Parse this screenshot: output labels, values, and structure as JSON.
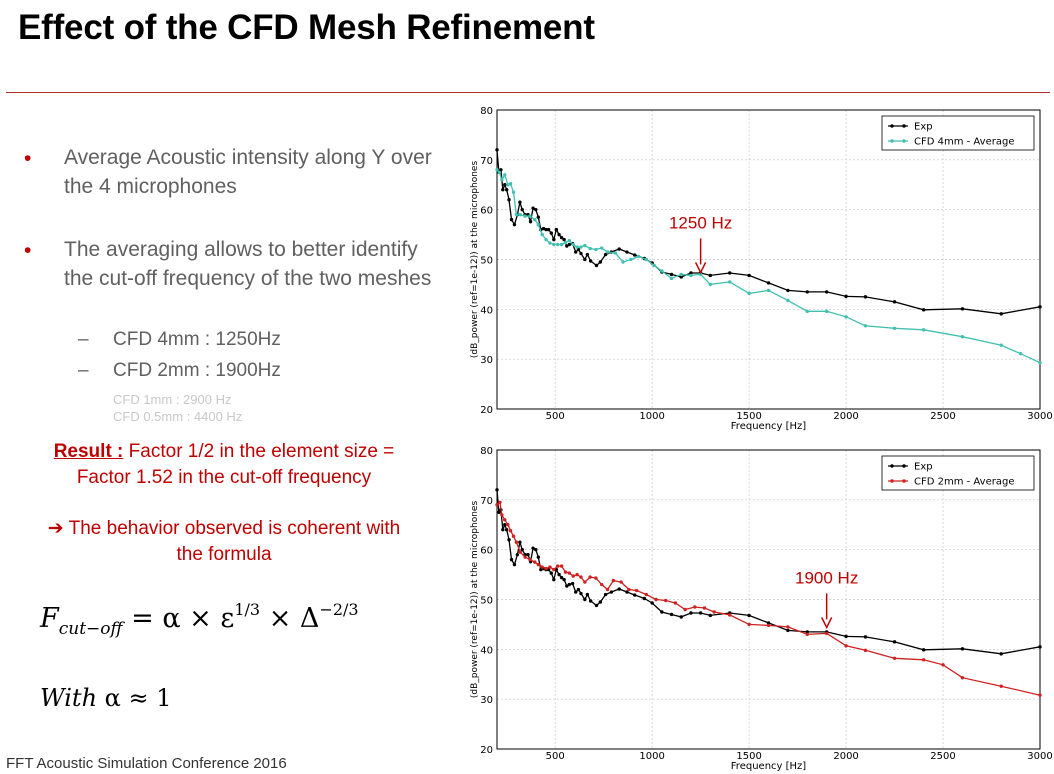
{
  "slide": {
    "title": "Effect of the CFD Mesh Refinement",
    "footer": "FFT Acoustic Simulation Conference 2016"
  },
  "bullets": [
    {
      "marker": "•",
      "text": "Average Acoustic intensity along Y over the 4 microphones"
    },
    {
      "marker": "•",
      "text": "The averaging allows to better identify the cut-off frequency of the two meshes"
    }
  ],
  "sub_bullets": [
    {
      "marker": "–",
      "text": "CFD 4mm : 1250Hz"
    },
    {
      "marker": "–",
      "text": "CFD 2mm : 1900Hz"
    }
  ],
  "fine_notes": [
    "CFD 1mm : 2900 Hz",
    "CFD 0.5mm : 4400 Hz"
  ],
  "result": {
    "label": "Result :",
    "line1": " Factor 1/2 in the element size =",
    "line2": "Factor 1.52 in the cut-off frequency"
  },
  "coherent": {
    "arrow": "➔",
    "line1": " The behavior observed is coherent with",
    "line2": "the formula"
  },
  "formula": {
    "lhs": "F",
    "lhs_sub": "cut−off",
    "rhs_part1": " = α × ε",
    "exp1": "1/3",
    "rhs_part2": " × Δ",
    "exp2": "−2/3"
  },
  "with_alpha": {
    "word": "With",
    "rest": " α ≈ 1"
  },
  "chart_data": [
    {
      "type": "line",
      "xlabel": "Frequency [Hz]",
      "ylabel": "(dB_power (ref=1e-12)) at the microphones",
      "xlim": [
        200,
        3000
      ],
      "ylim": [
        20,
        80
      ],
      "xticks": [
        500,
        1000,
        1500,
        2000,
        2500,
        3000
      ],
      "yticks": [
        20,
        30,
        40,
        50,
        60,
        70,
        80
      ],
      "grid": true,
      "legend_position": "top-right",
      "annotation": {
        "text": "1250 Hz",
        "x": 1250,
        "y": 47
      },
      "series": [
        {
          "name": "Exp",
          "color": "#000000",
          "points": [
            [
              200,
              72
            ],
            [
              210,
              67.5
            ],
            [
              220,
              68
            ],
            [
              230,
              64
            ],
            [
              240,
              65
            ],
            [
              250,
              64
            ],
            [
              262,
              62
            ],
            [
              275,
              58
            ],
            [
              290,
              57
            ],
            [
              305,
              59
            ],
            [
              318,
              61.5
            ],
            [
              330,
              60
            ],
            [
              345,
              59
            ],
            [
              360,
              59
            ],
            [
              373,
              57.6
            ],
            [
              386,
              60.3
            ],
            [
              400,
              60
            ],
            [
              413,
              58.5
            ],
            [
              426,
              56
            ],
            [
              440,
              56.2
            ],
            [
              453,
              56
            ],
            [
              466,
              56
            ],
            [
              480,
              55.3
            ],
            [
              493,
              54
            ],
            [
              506,
              56
            ],
            [
              520,
              55
            ],
            [
              533,
              54.4
            ],
            [
              546,
              54
            ],
            [
              560,
              52.7
            ],
            [
              573,
              53
            ],
            [
              590,
              53.2
            ],
            [
              606,
              51.5
            ],
            [
              620,
              52
            ],
            [
              633,
              51.2
            ],
            [
              653,
              50
            ],
            [
              666,
              51
            ],
            [
              683,
              49.7
            ],
            [
              713,
              48.8
            ],
            [
              733,
              49.5
            ],
            [
              760,
              51
            ],
            [
              790,
              51.5
            ],
            [
              830,
              52.1
            ],
            [
              870,
              51.5
            ],
            [
              910,
              50.9
            ],
            [
              960,
              50.2
            ],
            [
              1000,
              49.3
            ],
            [
              1050,
              47.5
            ],
            [
              1100,
              47
            ],
            [
              1150,
              46.5
            ],
            [
              1200,
              47.3
            ],
            [
              1250,
              47.3
            ],
            [
              1300,
              46.8
            ],
            [
              1400,
              47.3
            ],
            [
              1500,
              46.8
            ],
            [
              1600,
              45.3
            ],
            [
              1700,
              43.8
            ],
            [
              1800,
              43.5
            ],
            [
              1900,
              43.5
            ],
            [
              2000,
              42.6
            ],
            [
              2100,
              42.5
            ],
            [
              2250,
              41.5
            ],
            [
              2400,
              39.9
            ],
            [
              2600,
              40.1
            ],
            [
              2800,
              39.1
            ],
            [
              3000,
              40.5
            ]
          ]
        },
        {
          "name": "CFD 4mm - Average",
          "color": "#40c0b0",
          "points": [
            [
              200,
              68
            ],
            [
              212,
              67.5
            ],
            [
              225,
              66
            ],
            [
              240,
              67
            ],
            [
              256,
              65
            ],
            [
              270,
              65.2
            ],
            [
              285,
              63.5
            ],
            [
              300,
              59
            ],
            [
              320,
              59
            ],
            [
              345,
              58.7
            ],
            [
              370,
              58.7
            ],
            [
              395,
              58
            ],
            [
              413,
              57
            ],
            [
              433,
              55
            ],
            [
              453,
              54
            ],
            [
              473,
              53.3
            ],
            [
              493,
              53
            ],
            [
              513,
              53
            ],
            [
              533,
              53
            ],
            [
              553,
              53.4
            ],
            [
              573,
              53.8
            ],
            [
              593,
              53
            ],
            [
              613,
              52.5
            ],
            [
              633,
              52.5
            ],
            [
              653,
              52.8
            ],
            [
              680,
              52.2
            ],
            [
              710,
              52
            ],
            [
              740,
              52.3
            ],
            [
              770,
              51.5
            ],
            [
              810,
              51.3
            ],
            [
              850,
              49.5
            ],
            [
              890,
              50
            ],
            [
              930,
              50.6
            ],
            [
              970,
              50
            ],
            [
              1010,
              48.8
            ],
            [
              1050,
              47.7
            ],
            [
              1100,
              46.2
            ],
            [
              1150,
              47
            ],
            [
              1200,
              46.8
            ],
            [
              1250,
              47
            ],
            [
              1300,
              45
            ],
            [
              1400,
              45.5
            ],
            [
              1500,
              43.2
            ],
            [
              1600,
              43.8
            ],
            [
              1700,
              41.8
            ],
            [
              1800,
              39.6
            ],
            [
              1900,
              39.6
            ],
            [
              2000,
              38.5
            ],
            [
              2100,
              36.7
            ],
            [
              2250,
              36.2
            ],
            [
              2400,
              35.9
            ],
            [
              2600,
              34.5
            ],
            [
              2800,
              32.8
            ],
            [
              2900,
              31.1
            ],
            [
              3000,
              29.3
            ]
          ]
        }
      ]
    },
    {
      "type": "line",
      "xlabel": "Frequency [Hz]",
      "ylabel": "(dB_power (ref=1e-12)) at the microphones",
      "xlim": [
        200,
        3000
      ],
      "ylim": [
        20,
        80
      ],
      "xticks": [
        500,
        1000,
        1500,
        2000,
        2500,
        3000
      ],
      "yticks": [
        20,
        30,
        40,
        50,
        60,
        70,
        80
      ],
      "grid": true,
      "legend_position": "top-right",
      "annotation": {
        "text": "1900 Hz",
        "x": 1900,
        "y": 44
      },
      "series": [
        {
          "name": "Exp",
          "color": "#000000",
          "points": [
            [
              200,
              72
            ],
            [
              210,
              67.5
            ],
            [
              220,
              68
            ],
            [
              230,
              64
            ],
            [
              240,
              65
            ],
            [
              250,
              64
            ],
            [
              262,
              62
            ],
            [
              275,
              58
            ],
            [
              290,
              57
            ],
            [
              305,
              59
            ],
            [
              318,
              61.5
            ],
            [
              330,
              60
            ],
            [
              345,
              59
            ],
            [
              360,
              59
            ],
            [
              373,
              57.6
            ],
            [
              386,
              60.3
            ],
            [
              400,
              60
            ],
            [
              413,
              58.5
            ],
            [
              426,
              56
            ],
            [
              440,
              56.2
            ],
            [
              453,
              56
            ],
            [
              466,
              56
            ],
            [
              480,
              55.3
            ],
            [
              493,
              54
            ],
            [
              506,
              56
            ],
            [
              520,
              55
            ],
            [
              533,
              54.4
            ],
            [
              546,
              54
            ],
            [
              560,
              52.7
            ],
            [
              573,
              53
            ],
            [
              590,
              53.2
            ],
            [
              606,
              51.5
            ],
            [
              620,
              52
            ],
            [
              633,
              51.2
            ],
            [
              653,
              50
            ],
            [
              666,
              51
            ],
            [
              683,
              49.7
            ],
            [
              713,
              48.8
            ],
            [
              733,
              49.5
            ],
            [
              760,
              51
            ],
            [
              790,
              51.5
            ],
            [
              830,
              52.1
            ],
            [
              870,
              51.5
            ],
            [
              910,
              50.9
            ],
            [
              960,
              50.2
            ],
            [
              1000,
              49.3
            ],
            [
              1050,
              47.5
            ],
            [
              1100,
              47
            ],
            [
              1150,
              46.5
            ],
            [
              1200,
              47.3
            ],
            [
              1250,
              47.3
            ],
            [
              1300,
              46.8
            ],
            [
              1400,
              47.3
            ],
            [
              1500,
              46.8
            ],
            [
              1600,
              45.3
            ],
            [
              1700,
              43.8
            ],
            [
              1800,
              43.5
            ],
            [
              1900,
              43.5
            ],
            [
              2000,
              42.6
            ],
            [
              2100,
              42.5
            ],
            [
              2250,
              41.5
            ],
            [
              2400,
              39.9
            ],
            [
              2600,
              40.1
            ],
            [
              2800,
              39.1
            ],
            [
              3000,
              40.5
            ]
          ]
        },
        {
          "name": "CFD 2mm - Average",
          "color": "#d02020",
          "points": [
            [
              200,
              69
            ],
            [
              215,
              69.5
            ],
            [
              225,
              67
            ],
            [
              240,
              66
            ],
            [
              256,
              65
            ],
            [
              270,
              63.8
            ],
            [
              285,
              62.7
            ],
            [
              300,
              61.5
            ],
            [
              320,
              59.5
            ],
            [
              345,
              58.5
            ],
            [
              370,
              58
            ],
            [
              395,
              57.5
            ],
            [
              413,
              57
            ],
            [
              433,
              56.5
            ],
            [
              453,
              56.2
            ],
            [
              473,
              56.5
            ],
            [
              493,
              56
            ],
            [
              513,
              56.7
            ],
            [
              533,
              56.7
            ],
            [
              553,
              55.5
            ],
            [
              573,
              55.3
            ],
            [
              593,
              54.7
            ],
            [
              613,
              55
            ],
            [
              633,
              54.5
            ],
            [
              653,
              53.5
            ],
            [
              680,
              54.5
            ],
            [
              710,
              54.3
            ],
            [
              740,
              53
            ],
            [
              770,
              52
            ],
            [
              800,
              53.8
            ],
            [
              840,
              53.5
            ],
            [
              880,
              52
            ],
            [
              920,
              51.8
            ],
            [
              970,
              51
            ],
            [
              1020,
              50
            ],
            [
              1070,
              49.8
            ],
            [
              1120,
              49.3
            ],
            [
              1170,
              48
            ],
            [
              1220,
              48.5
            ],
            [
              1270,
              48.3
            ],
            [
              1320,
              47.5
            ],
            [
              1400,
              46.9
            ],
            [
              1500,
              45
            ],
            [
              1600,
              44.8
            ],
            [
              1700,
              44.5
            ],
            [
              1800,
              43
            ],
            [
              1900,
              43.2
            ],
            [
              2000,
              40.7
            ],
            [
              2100,
              39.8
            ],
            [
              2250,
              38.2
            ],
            [
              2400,
              37.9
            ],
            [
              2500,
              36.9
            ],
            [
              2600,
              34.3
            ],
            [
              2800,
              32.6
            ],
            [
              3000,
              30.8
            ]
          ]
        }
      ]
    }
  ]
}
